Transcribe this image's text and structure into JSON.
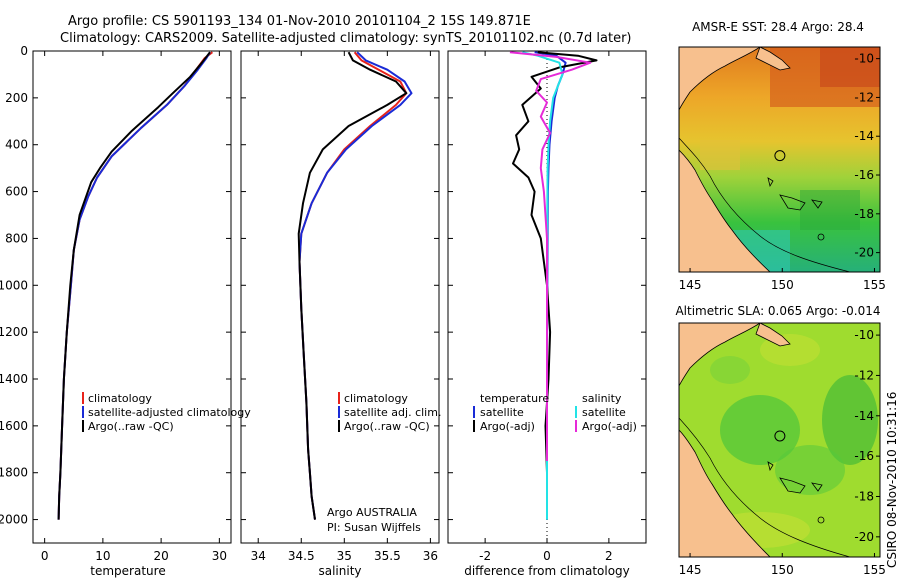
{
  "header": {
    "line1": "Argo profile: CS 5901193_134 01-Nov-2010 20101104_2 15S 149.871E",
    "line2": "Climatology: CARS2009. Satellite-adjusted climatology: synTS_20101102.nc (0.7d later)"
  },
  "side_stamp": "CSIRO 08-Nov-2010 10:31:16",
  "colors": {
    "climatology": "#e8231b",
    "satellite": "#1a2bd6",
    "argo": "#000000",
    "cyan": "#22e3e6",
    "magenta": "#e62ad8",
    "land": "#f7c08e"
  },
  "chart_data": [
    {
      "type": "line",
      "id": "temperature",
      "xlabel": "temperature",
      "ylabel": "",
      "xlim": [
        -2,
        32
      ],
      "ylim": [
        2100,
        0
      ],
      "xticks": [
        0,
        10,
        20,
        30
      ],
      "xtick_labels": [
        "0",
        "10",
        "20",
        "30"
      ],
      "yticks": [
        0,
        200,
        400,
        600,
        800,
        1000,
        1200,
        1400,
        1600,
        1800,
        2000
      ],
      "ytick_labels": [
        "0",
        "200",
        "400",
        "600",
        "800",
        "1000",
        "1200",
        "1400",
        "1600",
        "1800",
        "2000"
      ],
      "legend": [
        "climatology",
        "satellite-adjusted climatology",
        "Argo(..raw -QC)"
      ],
      "legend_position": "bottom-right",
      "series": [
        {
          "name": "climatology",
          "color": "#e8231b",
          "x": [
            28.8,
            27.5,
            26.0,
            24.0,
            21.0,
            16.5,
            11.5,
            9.0,
            7.5,
            6.0,
            5.0,
            4.5,
            3.8,
            3.3,
            3.0,
            2.7,
            2.5,
            2.4
          ],
          "y": [
            5,
            30,
            80,
            150,
            230,
            330,
            450,
            540,
            620,
            720,
            850,
            1000,
            1200,
            1400,
            1600,
            1800,
            1900,
            2000
          ]
        },
        {
          "name": "satellite-adjusted climatology",
          "color": "#1a2bd6",
          "x": [
            28.4,
            27.8,
            26.3,
            24.0,
            21.0,
            16.5,
            11.5,
            9.0,
            7.5,
            6.0,
            5.0,
            4.5,
            3.8,
            3.3,
            3.0,
            2.7,
            2.5,
            2.4
          ],
          "y": [
            5,
            30,
            80,
            150,
            230,
            330,
            450,
            540,
            620,
            720,
            850,
            1000,
            1200,
            1400,
            1600,
            1800,
            1900,
            2000
          ]
        },
        {
          "name": "Argo(..raw -QC)",
          "color": "#000000",
          "x": [
            28.4,
            27.0,
            25.0,
            22.0,
            19.5,
            15.0,
            11.5,
            9.5,
            8.0,
            6.0,
            5.0,
            4.4,
            3.8,
            3.3,
            3.0,
            2.7,
            2.5,
            2.4
          ],
          "y": [
            5,
            50,
            110,
            180,
            240,
            340,
            430,
            500,
            560,
            700,
            850,
            1000,
            1200,
            1400,
            1600,
            1800,
            1900,
            2000
          ]
        }
      ]
    },
    {
      "type": "line",
      "id": "salinity",
      "xlabel": "salinity",
      "ylabel": "",
      "xlim": [
        33.8,
        36.1
      ],
      "ylim": [
        2100,
        0
      ],
      "xticks": [
        34,
        34.5,
        35,
        35.5,
        36
      ],
      "xtick_labels": [
        "34",
        "34.5",
        "35",
        "35.5",
        "36"
      ],
      "legend": [
        "climatology",
        "satellite adj. clim.",
        "Argo(..raw -QC)"
      ],
      "legend_position": "bottom-right",
      "annotation": [
        "Argo AUSTRALIA",
        "PI: Susan Wijffels"
      ],
      "series": [
        {
          "name": "climatology",
          "color": "#e8231b",
          "x": [
            35.12,
            35.2,
            35.4,
            35.65,
            35.72,
            35.6,
            35.3,
            35.0,
            34.8,
            34.62,
            34.5,
            34.48,
            34.5,
            34.53,
            34.56,
            34.58,
            34.6,
            34.62,
            34.64,
            34.66
          ],
          "y": [
            5,
            40,
            80,
            130,
            180,
            230,
            320,
            420,
            520,
            650,
            780,
            900,
            1100,
            1300,
            1500,
            1700,
            1800,
            1900,
            1950,
            2000
          ]
        },
        {
          "name": "satellite adj. clim.",
          "color": "#1a2bd6",
          "x": [
            35.15,
            35.25,
            35.5,
            35.7,
            35.78,
            35.65,
            35.32,
            35.02,
            34.8,
            34.62,
            34.5,
            34.48,
            34.5,
            34.53,
            34.56,
            34.58,
            34.6,
            34.62,
            34.64,
            34.66
          ],
          "y": [
            5,
            40,
            80,
            130,
            180,
            230,
            320,
            420,
            520,
            650,
            780,
            900,
            1100,
            1300,
            1500,
            1700,
            1800,
            1900,
            1950,
            2000
          ]
        },
        {
          "name": "Argo(..raw -QC)",
          "color": "#000000",
          "x": [
            35.05,
            35.1,
            35.3,
            35.6,
            35.72,
            35.5,
            35.05,
            34.75,
            34.6,
            34.52,
            34.47,
            34.48,
            34.5,
            34.53,
            34.56,
            34.58,
            34.6,
            34.62,
            34.64,
            34.66
          ],
          "y": [
            5,
            40,
            80,
            130,
            180,
            230,
            320,
            420,
            520,
            650,
            780,
            900,
            1100,
            1300,
            1500,
            1700,
            1800,
            1900,
            1950,
            2000
          ]
        }
      ]
    },
    {
      "type": "line",
      "id": "difference",
      "xlabel": "difference from climatology",
      "ylabel": "",
      "xlim": [
        -3.2,
        3.2
      ],
      "ylim": [
        2100,
        0
      ],
      "xticks": [
        -2,
        0,
        2
      ],
      "xtick_labels": [
        "-2",
        "0",
        "2"
      ],
      "legend_left_title": "temperature",
      "legend_right_title": "salinity",
      "legend_left": [
        "satellite",
        "Argo(-adj)"
      ],
      "legend_right": [
        "satellite",
        "Argo(-adj)"
      ],
      "legend_position": "bottom",
      "series": [
        {
          "name": "temperature satellite",
          "color": "#1a2bd6",
          "x": [
            -0.4,
            0.3,
            0.6,
            0.5,
            0.35,
            0.25,
            0.15,
            0.08,
            0.05,
            0.03,
            0.02,
            0.01,
            0.0,
            0.0,
            0.0,
            0.0
          ],
          "y": [
            5,
            20,
            50,
            100,
            150,
            200,
            300,
            400,
            500,
            600,
            800,
            1000,
            1300,
            1600,
            1900,
            2000
          ]
        },
        {
          "name": "temperature Argo(-adj)",
          "color": "#000000",
          "x": [
            -0.3,
            1.0,
            1.6,
            0.4,
            -0.5,
            -0.2,
            -0.8,
            -0.6,
            -1.0,
            -0.9,
            -1.1,
            -0.6,
            -0.4,
            -0.5,
            -0.2,
            -0.1,
            0.0,
            0.1,
            0.05,
            -0.05,
            0.0,
            0.0
          ],
          "y": [
            5,
            20,
            40,
            70,
            110,
            160,
            230,
            300,
            360,
            420,
            480,
            540,
            600,
            700,
            800,
            900,
            1000,
            1200,
            1400,
            1600,
            1800,
            1850
          ]
        },
        {
          "name": "salinity satellite",
          "color": "#22e3e6",
          "x": [
            -0.8,
            -0.3,
            0.4,
            0.5,
            0.35,
            0.2,
            0.1,
            0.05,
            0.02,
            0.01,
            0.0,
            0.0,
            0.0,
            0.0
          ],
          "y": [
            5,
            20,
            50,
            100,
            150,
            200,
            300,
            400,
            500,
            700,
            1000,
            1400,
            1800,
            2000
          ]
        },
        {
          "name": "salinity Argo(-adj)",
          "color": "#e62ad8",
          "x": [
            -1.2,
            0.3,
            1.4,
            0.8,
            -0.2,
            -0.35,
            0.0,
            -0.2,
            0.1,
            -0.15,
            -0.2,
            -0.1,
            0.0,
            0.0,
            0.0,
            0.0,
            0.0
          ],
          "y": [
            5,
            25,
            50,
            80,
            120,
            170,
            220,
            280,
            350,
            420,
            500,
            600,
            800,
            1000,
            1300,
            1600,
            1750
          ]
        }
      ]
    },
    {
      "type": "heatmap",
      "id": "sst_map",
      "title": "AMSR-E SST: 28.4 Argo: 28.4",
      "xlim": [
        144.4,
        155.3
      ],
      "ylim": [
        -21,
        -9.4
      ],
      "xticks": [
        145,
        150,
        155
      ],
      "xtick_labels": [
        "145",
        "150",
        "155"
      ],
      "yticks": [
        -10,
        -12,
        -14,
        -16,
        -18,
        -20
      ],
      "ytick_labels": [
        "-10",
        "-12",
        "-14",
        "-16",
        "-18",
        "-20"
      ],
      "float_position": {
        "lon": 149.871,
        "lat": -15.0
      }
    },
    {
      "type": "heatmap",
      "id": "sla_map",
      "title": "Altimetric SLA: 0.065 Argo: -0.014",
      "xlim": [
        144.4,
        155.3
      ],
      "ylim": [
        -21,
        -9.4
      ],
      "xticks": [
        145,
        150,
        155
      ],
      "xtick_labels": [
        "145",
        "150",
        "155"
      ],
      "yticks": [
        -10,
        -12,
        -14,
        -16,
        -18,
        -20
      ],
      "ytick_labels": [
        "-10",
        "-12",
        "-14",
        "-16",
        "-18",
        "-20"
      ],
      "float_position": {
        "lon": 149.871,
        "lat": -15.0
      }
    }
  ]
}
